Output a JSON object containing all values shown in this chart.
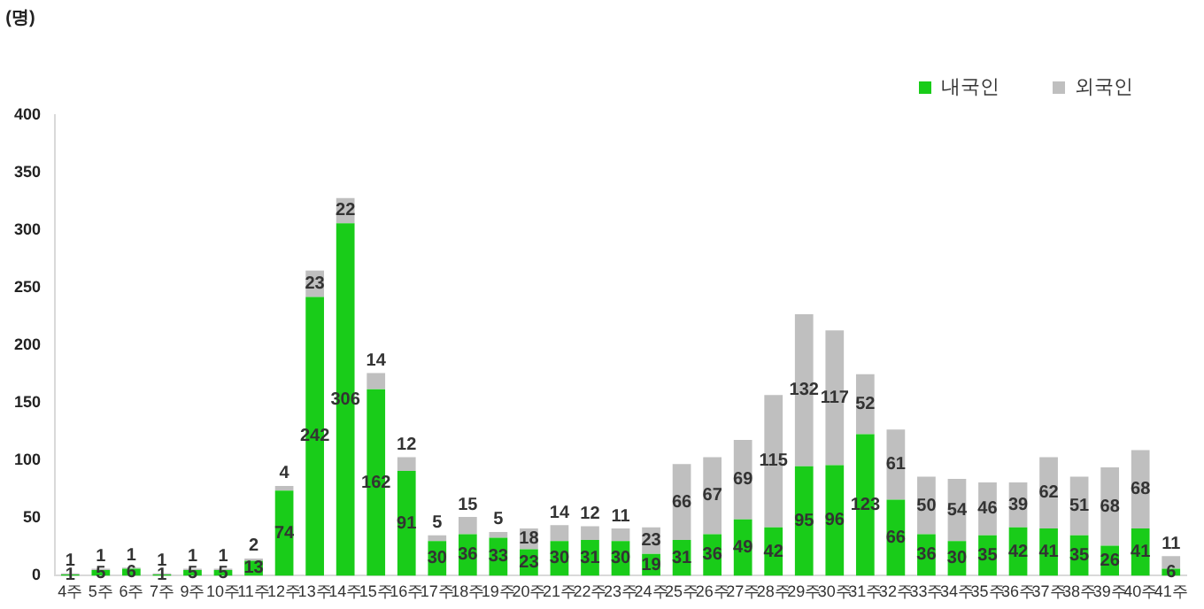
{
  "chart_data": {
    "type": "bar",
    "stacked": true,
    "ylabel": "(명)",
    "categories": [
      "4주",
      "5주",
      "6주",
      "7주",
      "9주",
      "10주",
      "11주",
      "12주",
      "13주",
      "14주",
      "15주",
      "16주",
      "17주",
      "18주",
      "19주",
      "20주",
      "21주",
      "22주",
      "23주",
      "24주",
      "25주",
      "26주",
      "27주",
      "28주",
      "29주",
      "30주",
      "31주",
      "32주",
      "33주",
      "34주",
      "35주",
      "36주",
      "37주",
      "38주",
      "39주",
      "40주",
      "41주"
    ],
    "series": [
      {
        "name": "내국인",
        "color": "#19cc19",
        "values": [
          1,
          5,
          6,
          1,
          5,
          5,
          13,
          74,
          242,
          306,
          162,
          91,
          30,
          36,
          33,
          23,
          30,
          31,
          30,
          19,
          31,
          36,
          49,
          42,
          95,
          96,
          123,
          66,
          36,
          30,
          35,
          42,
          41,
          35,
          26,
          41,
          6
        ]
      },
      {
        "name": "외국인",
        "color": "#bfbfbf",
        "values": [
          1,
          1,
          1,
          1,
          1,
          1,
          2,
          4,
          23,
          22,
          14,
          12,
          5,
          15,
          5,
          18,
          14,
          12,
          11,
          23,
          66,
          67,
          69,
          115,
          132,
          117,
          52,
          61,
          50,
          54,
          46,
          39,
          62,
          51,
          68,
          68,
          11
        ]
      }
    ],
    "ylim": [
      0,
      400
    ],
    "yticks": [
      0,
      50,
      100,
      150,
      200,
      250,
      300,
      350,
      400
    ],
    "grid": false,
    "legend": "top right",
    "data_labels": true
  }
}
